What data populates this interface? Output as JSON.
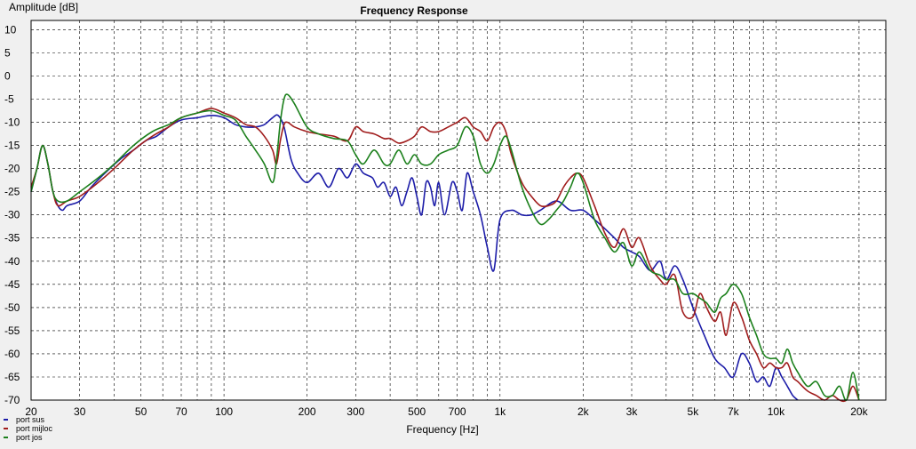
{
  "chart_data": {
    "type": "line",
    "title": "Frequency Response",
    "xlabel": "Frequency [Hz]",
    "ylabel": "Amplitude [dB]",
    "x_scale": "log",
    "xlim": [
      20,
      25000
    ],
    "ylim": [
      -70,
      12
    ],
    "x_ticks": [
      {
        "value": 20,
        "label": "20"
      },
      {
        "value": 30,
        "label": "30"
      },
      {
        "value": 50,
        "label": "50"
      },
      {
        "value": 70,
        "label": "70"
      },
      {
        "value": 100,
        "label": "100"
      },
      {
        "value": 200,
        "label": "200"
      },
      {
        "value": 300,
        "label": "300"
      },
      {
        "value": 500,
        "label": "500"
      },
      {
        "value": 700,
        "label": "700"
      },
      {
        "value": 1000,
        "label": "1k"
      },
      {
        "value": 2000,
        "label": "2k"
      },
      {
        "value": 3000,
        "label": "3k"
      },
      {
        "value": 5000,
        "label": "5k"
      },
      {
        "value": 7000,
        "label": "7k"
      },
      {
        "value": 10000,
        "label": "10k"
      },
      {
        "value": 20000,
        "label": "20k"
      }
    ],
    "y_ticks": [
      10,
      5,
      0,
      -5,
      -10,
      -15,
      -20,
      -25,
      -30,
      -35,
      -40,
      -45,
      -50,
      -55,
      -60,
      -65,
      -70
    ],
    "grid": "on",
    "legend_position": "bottom-left",
    "series": [
      {
        "name": "port sus",
        "color": "#1c1ca8",
        "points": [
          [
            20,
            -25
          ],
          [
            21,
            -20
          ],
          [
            22,
            -15
          ],
          [
            23,
            -19
          ],
          [
            24,
            -25
          ],
          [
            25,
            -28
          ],
          [
            26,
            -29
          ],
          [
            27,
            -28
          ],
          [
            30,
            -27
          ],
          [
            33,
            -24
          ],
          [
            37,
            -21
          ],
          [
            42,
            -18
          ],
          [
            47,
            -16
          ],
          [
            52,
            -14
          ],
          [
            57,
            -13
          ],
          [
            63,
            -11
          ],
          [
            70,
            -9.5
          ],
          [
            80,
            -9
          ],
          [
            90,
            -8.5
          ],
          [
            100,
            -9
          ],
          [
            110,
            -10.5
          ],
          [
            120,
            -11
          ],
          [
            130,
            -11
          ],
          [
            140,
            -10.5
          ],
          [
            150,
            -9
          ],
          [
            157,
            -8.5
          ],
          [
            165,
            -11
          ],
          [
            175,
            -18
          ],
          [
            185,
            -21
          ],
          [
            200,
            -23
          ],
          [
            220,
            -21
          ],
          [
            240,
            -24
          ],
          [
            260,
            -20
          ],
          [
            280,
            -22
          ],
          [
            300,
            -19
          ],
          [
            320,
            -21
          ],
          [
            345,
            -22
          ],
          [
            360,
            -24
          ],
          [
            380,
            -23
          ],
          [
            400,
            -26
          ],
          [
            420,
            -24
          ],
          [
            440,
            -28
          ],
          [
            460,
            -25
          ],
          [
            480,
            -22
          ],
          [
            500,
            -26
          ],
          [
            520,
            -30
          ],
          [
            540,
            -23
          ],
          [
            560,
            -24
          ],
          [
            580,
            -28
          ],
          [
            600,
            -23
          ],
          [
            630,
            -30
          ],
          [
            670,
            -23
          ],
          [
            700,
            -25
          ],
          [
            730,
            -29
          ],
          [
            760,
            -21
          ],
          [
            800,
            -25
          ],
          [
            850,
            -30
          ],
          [
            900,
            -37
          ],
          [
            950,
            -42
          ],
          [
            1000,
            -31
          ],
          [
            1100,
            -29
          ],
          [
            1200,
            -30
          ],
          [
            1300,
            -30
          ],
          [
            1400,
            -29
          ],
          [
            1600,
            -27
          ],
          [
            1800,
            -29
          ],
          [
            2000,
            -29
          ],
          [
            2200,
            -31
          ],
          [
            2400,
            -33
          ],
          [
            2600,
            -35
          ],
          [
            2800,
            -37
          ],
          [
            3000,
            -38
          ],
          [
            3200,
            -39
          ],
          [
            3500,
            -42
          ],
          [
            3800,
            -40
          ],
          [
            4000,
            -44
          ],
          [
            4300,
            -41
          ],
          [
            4600,
            -44
          ],
          [
            5000,
            -50
          ],
          [
            5500,
            -56
          ],
          [
            6000,
            -61
          ],
          [
            6500,
            -63
          ],
          [
            7000,
            -65
          ],
          [
            7500,
            -60
          ],
          [
            8000,
            -62
          ],
          [
            8500,
            -66
          ],
          [
            9000,
            -65
          ],
          [
            9500,
            -67
          ],
          [
            10000,
            -63
          ],
          [
            10500,
            -65
          ],
          [
            11000,
            -67
          ],
          [
            11500,
            -69
          ],
          [
            12000,
            -70
          ]
        ]
      },
      {
        "name": "port mijloc",
        "color": "#a01c1c",
        "points": [
          [
            20,
            -24
          ],
          [
            21,
            -20
          ],
          [
            22,
            -15
          ],
          [
            23,
            -19
          ],
          [
            24,
            -25
          ],
          [
            25,
            -28
          ],
          [
            27,
            -27
          ],
          [
            30,
            -26
          ],
          [
            35,
            -23
          ],
          [
            40,
            -20
          ],
          [
            47,
            -16
          ],
          [
            55,
            -13
          ],
          [
            63,
            -11
          ],
          [
            70,
            -9
          ],
          [
            80,
            -8
          ],
          [
            90,
            -7
          ],
          [
            100,
            -8
          ],
          [
            110,
            -9
          ],
          [
            120,
            -10.5
          ],
          [
            130,
            -11
          ],
          [
            140,
            -13
          ],
          [
            150,
            -16
          ],
          [
            155,
            -19
          ],
          [
            160,
            -14
          ],
          [
            165,
            -10.5
          ],
          [
            170,
            -10
          ],
          [
            180,
            -11
          ],
          [
            200,
            -12
          ],
          [
            220,
            -12.5
          ],
          [
            250,
            -13
          ],
          [
            280,
            -14
          ],
          [
            300,
            -11
          ],
          [
            320,
            -12
          ],
          [
            350,
            -12.5
          ],
          [
            380,
            -13.5
          ],
          [
            400,
            -13.5
          ],
          [
            430,
            -14.5
          ],
          [
            460,
            -14
          ],
          [
            490,
            -13
          ],
          [
            520,
            -11
          ],
          [
            560,
            -12
          ],
          [
            600,
            -12
          ],
          [
            650,
            -11
          ],
          [
            700,
            -10
          ],
          [
            750,
            -9
          ],
          [
            800,
            -11
          ],
          [
            850,
            -12
          ],
          [
            900,
            -14
          ],
          [
            950,
            -11
          ],
          [
            1000,
            -10
          ],
          [
            1050,
            -12
          ],
          [
            1100,
            -17
          ],
          [
            1200,
            -23
          ],
          [
            1300,
            -26
          ],
          [
            1400,
            -28
          ],
          [
            1500,
            -28
          ],
          [
            1600,
            -27
          ],
          [
            1700,
            -24
          ],
          [
            1800,
            -22
          ],
          [
            1900,
            -21
          ],
          [
            2000,
            -22
          ],
          [
            2200,
            -28
          ],
          [
            2400,
            -34
          ],
          [
            2600,
            -37
          ],
          [
            2800,
            -33
          ],
          [
            3000,
            -37
          ],
          [
            3200,
            -35
          ],
          [
            3500,
            -41
          ],
          [
            3800,
            -44
          ],
          [
            4000,
            -45
          ],
          [
            4300,
            -43
          ],
          [
            4600,
            -51
          ],
          [
            5000,
            -52
          ],
          [
            5300,
            -47
          ],
          [
            5600,
            -50
          ],
          [
            6000,
            -53
          ],
          [
            6300,
            -51
          ],
          [
            6600,
            -56
          ],
          [
            7000,
            -49
          ],
          [
            7500,
            -52
          ],
          [
            8000,
            -57
          ],
          [
            8500,
            -60
          ],
          [
            9000,
            -63
          ],
          [
            9500,
            -62
          ],
          [
            10000,
            -63
          ],
          [
            10500,
            -63
          ],
          [
            11000,
            -62
          ],
          [
            11500,
            -65
          ],
          [
            12000,
            -66
          ],
          [
            13000,
            -68
          ],
          [
            14000,
            -69
          ],
          [
            15000,
            -70
          ],
          [
            16000,
            -69
          ],
          [
            17000,
            -70
          ],
          [
            18000,
            -70
          ],
          [
            19000,
            -67
          ],
          [
            20000,
            -70
          ]
        ]
      },
      {
        "name": "port jos",
        "color": "#1c801c",
        "points": [
          [
            20,
            -25
          ],
          [
            21,
            -20
          ],
          [
            22,
            -15
          ],
          [
            23,
            -19
          ],
          [
            24,
            -25
          ],
          [
            25,
            -27
          ],
          [
            27,
            -27
          ],
          [
            30,
            -25
          ],
          [
            35,
            -22
          ],
          [
            40,
            -19
          ],
          [
            47,
            -15
          ],
          [
            55,
            -12
          ],
          [
            63,
            -10.5
          ],
          [
            70,
            -9
          ],
          [
            80,
            -8
          ],
          [
            90,
            -7.5
          ],
          [
            100,
            -8.5
          ],
          [
            110,
            -9.5
          ],
          [
            120,
            -13
          ],
          [
            130,
            -16
          ],
          [
            140,
            -19
          ],
          [
            150,
            -23
          ],
          [
            155,
            -18
          ],
          [
            160,
            -10
          ],
          [
            165,
            -5
          ],
          [
            170,
            -4
          ],
          [
            180,
            -6
          ],
          [
            200,
            -11
          ],
          [
            220,
            -12.5
          ],
          [
            250,
            -13.5
          ],
          [
            280,
            -14
          ],
          [
            300,
            -17
          ],
          [
            320,
            -19
          ],
          [
            350,
            -16
          ],
          [
            380,
            -19
          ],
          [
            400,
            -19
          ],
          [
            430,
            -16
          ],
          [
            460,
            -19
          ],
          [
            490,
            -17
          ],
          [
            520,
            -19
          ],
          [
            560,
            -19
          ],
          [
            600,
            -17
          ],
          [
            650,
            -16
          ],
          [
            700,
            -15
          ],
          [
            750,
            -11
          ],
          [
            800,
            -13
          ],
          [
            850,
            -19
          ],
          [
            900,
            -21
          ],
          [
            950,
            -19
          ],
          [
            1000,
            -15
          ],
          [
            1050,
            -13
          ],
          [
            1100,
            -16
          ],
          [
            1200,
            -24
          ],
          [
            1300,
            -29
          ],
          [
            1400,
            -32
          ],
          [
            1500,
            -31
          ],
          [
            1600,
            -29
          ],
          [
            1700,
            -27
          ],
          [
            1800,
            -24
          ],
          [
            1900,
            -21
          ],
          [
            2000,
            -23
          ],
          [
            2200,
            -31
          ],
          [
            2400,
            -35
          ],
          [
            2600,
            -38
          ],
          [
            2800,
            -36
          ],
          [
            3000,
            -41
          ],
          [
            3200,
            -38
          ],
          [
            3500,
            -42
          ],
          [
            3800,
            -43
          ],
          [
            4000,
            -44
          ],
          [
            4300,
            -44
          ],
          [
            4600,
            -47
          ],
          [
            5000,
            -47
          ],
          [
            5300,
            -48
          ],
          [
            5600,
            -49
          ],
          [
            6000,
            -51
          ],
          [
            6300,
            -48
          ],
          [
            6600,
            -47
          ],
          [
            7000,
            -45
          ],
          [
            7500,
            -47
          ],
          [
            8000,
            -52
          ],
          [
            8500,
            -56
          ],
          [
            9000,
            -60
          ],
          [
            9500,
            -61
          ],
          [
            10000,
            -61
          ],
          [
            10500,
            -62
          ],
          [
            11000,
            -59
          ],
          [
            11500,
            -62
          ],
          [
            12000,
            -64
          ],
          [
            13000,
            -67
          ],
          [
            14000,
            -66
          ],
          [
            15000,
            -69
          ],
          [
            16000,
            -69
          ],
          [
            17000,
            -67
          ],
          [
            18000,
            -70
          ],
          [
            19000,
            -64
          ],
          [
            20000,
            -70
          ]
        ]
      }
    ]
  }
}
